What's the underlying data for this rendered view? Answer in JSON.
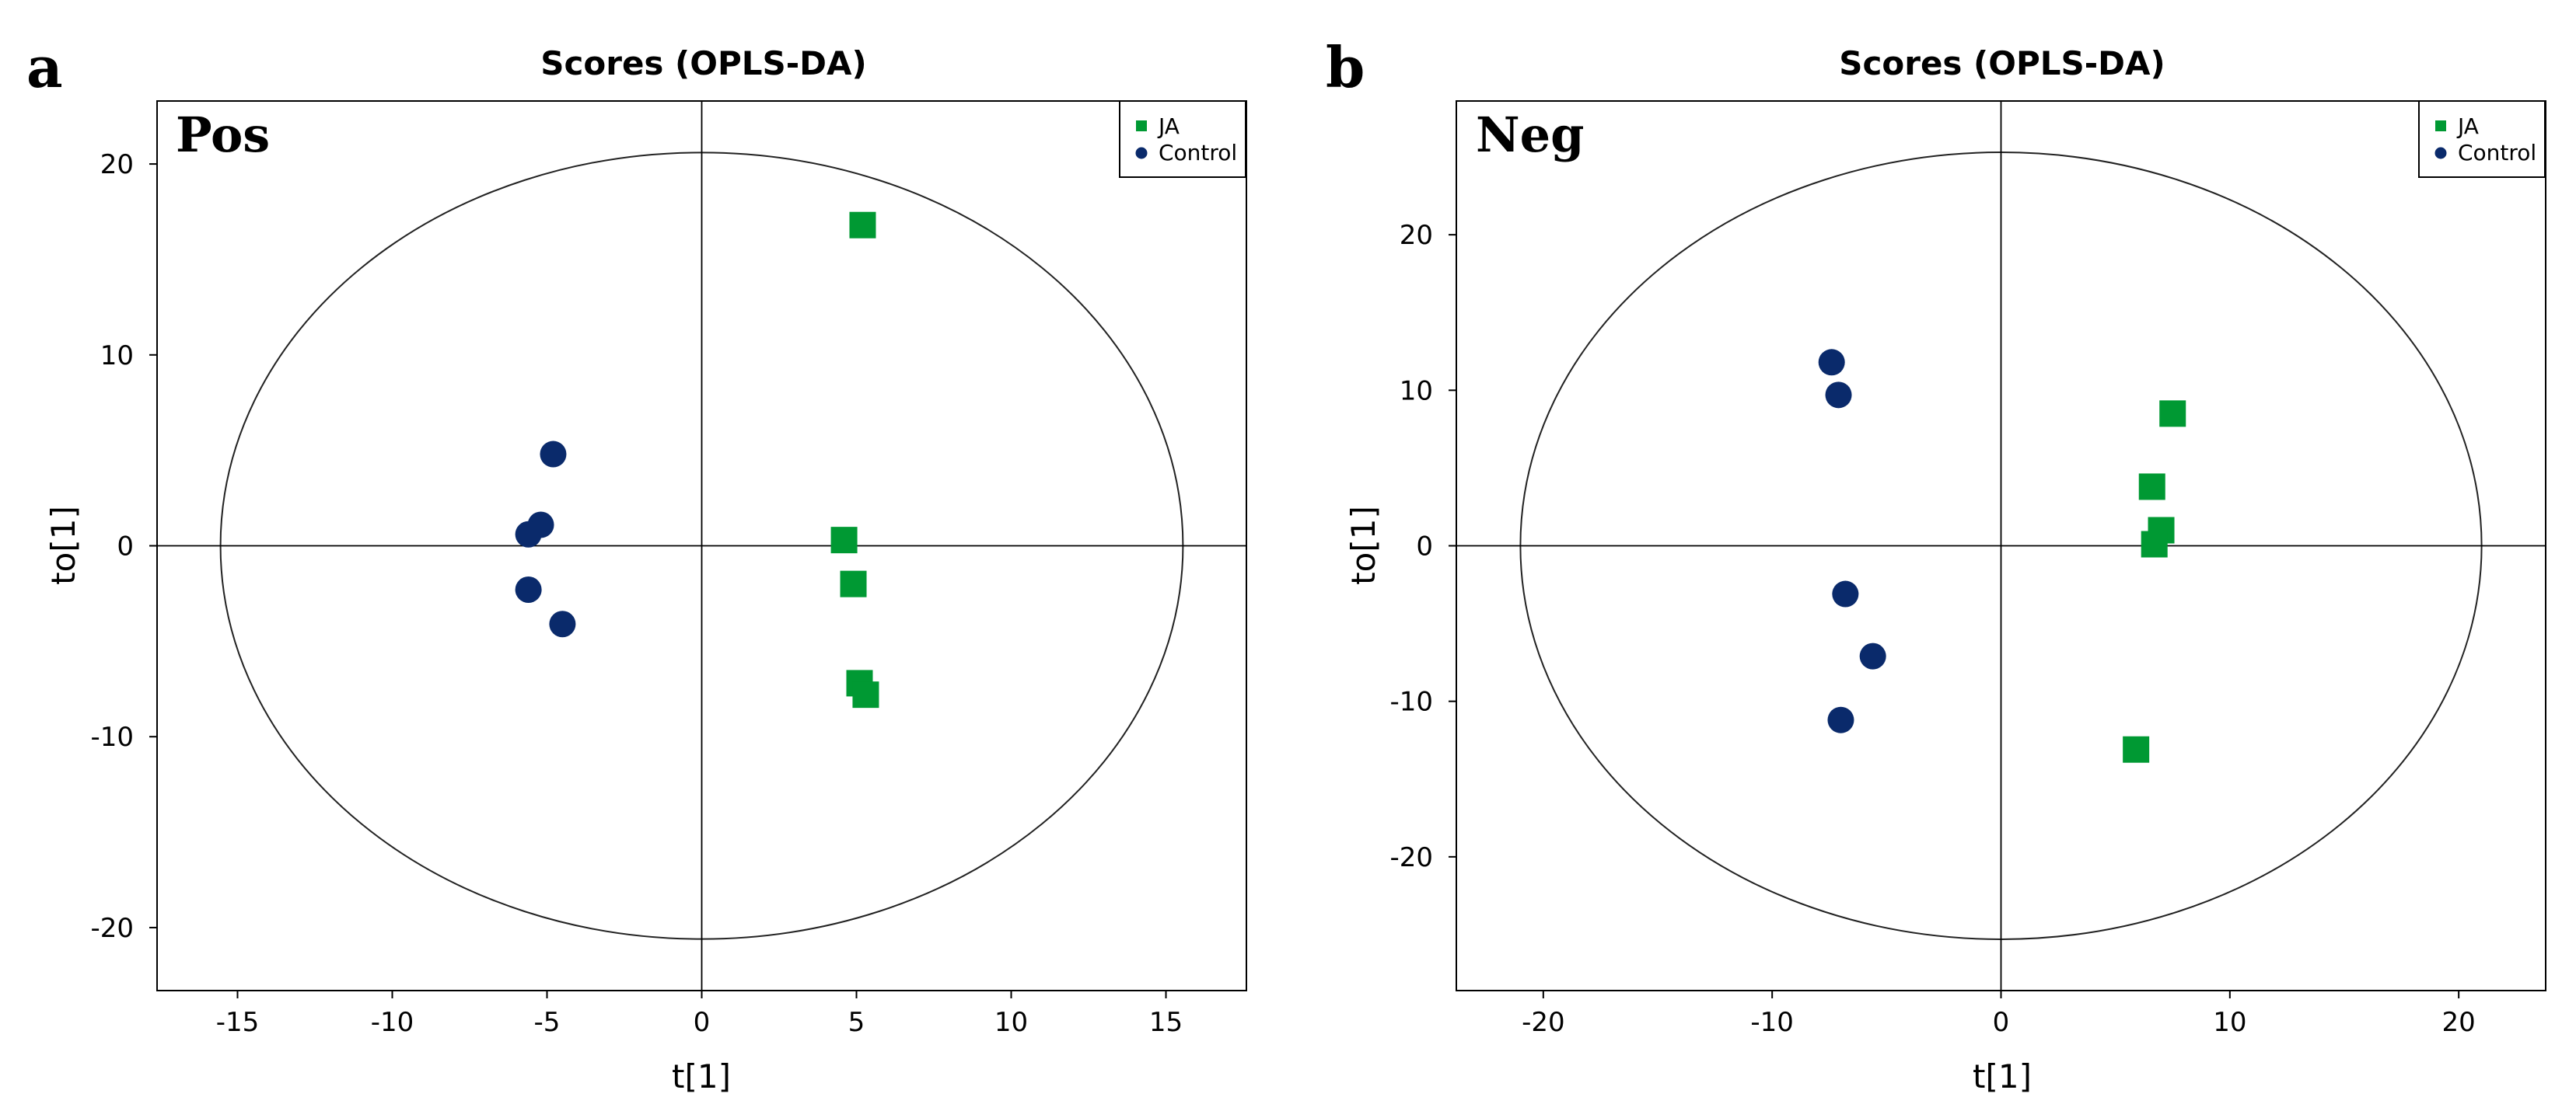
{
  "colors": {
    "ja": "#009933",
    "control": "#0a2a6b",
    "ellipse": "#222222",
    "axis": "#000000"
  },
  "chart_data": [
    {
      "type": "scatter",
      "panel_letter": "a",
      "panel_tag": "Pos",
      "title": "Scores (OPLS-DA)",
      "xlabel": "t[1]",
      "ylabel": "to[1]",
      "xlim": [
        -17.6,
        17.6
      ],
      "ylim": [
        -23.3,
        23.3
      ],
      "xticks": [
        -15,
        -10,
        -5,
        0,
        5,
        10,
        15
      ],
      "yticks": [
        -20,
        -10,
        0,
        10,
        20
      ],
      "ellipse": {
        "rx": 15.55,
        "ry": 20.6
      },
      "legend": {
        "position": "top-right",
        "entries": [
          "JA",
          "Control"
        ]
      },
      "series": [
        {
          "name": "JA",
          "marker": "square",
          "points": [
            [
              5.2,
              16.8
            ],
            [
              4.6,
              0.3
            ],
            [
              4.9,
              -2.0
            ],
            [
              5.1,
              -7.2
            ],
            [
              5.3,
              -7.8
            ]
          ]
        },
        {
          "name": "Control",
          "marker": "circle",
          "points": [
            [
              -4.8,
              4.8
            ],
            [
              -5.2,
              1.1
            ],
            [
              -5.6,
              0.6
            ],
            [
              -5.6,
              -2.3
            ],
            [
              -4.5,
              -4.1
            ]
          ]
        }
      ]
    },
    {
      "type": "scatter",
      "panel_letter": "b",
      "panel_tag": "Neg",
      "title": "Scores (OPLS-DA)",
      "xlabel": "t[1]",
      "ylabel": "to[1]",
      "xlim": [
        -23.8,
        23.8
      ],
      "ylim": [
        -28.6,
        28.6
      ],
      "xticks": [
        -20,
        -10,
        0,
        10,
        20
      ],
      "yticks": [
        -20,
        -10,
        0,
        10,
        20
      ],
      "ellipse": {
        "rx": 21.0,
        "ry": 25.3
      },
      "legend": {
        "position": "top-right",
        "entries": [
          "JA",
          "Control"
        ]
      },
      "series": [
        {
          "name": "JA",
          "marker": "square",
          "points": [
            [
              7.5,
              8.5
            ],
            [
              6.6,
              3.8
            ],
            [
              7.0,
              1.0
            ],
            [
              6.7,
              0.1
            ],
            [
              5.9,
              -13.1
            ]
          ]
        },
        {
          "name": "Control",
          "marker": "circle",
          "points": [
            [
              -7.4,
              11.8
            ],
            [
              -7.1,
              9.7
            ],
            [
              -6.8,
              -3.1
            ],
            [
              -5.6,
              -7.1
            ],
            [
              -7.0,
              -11.2
            ]
          ]
        }
      ]
    }
  ]
}
